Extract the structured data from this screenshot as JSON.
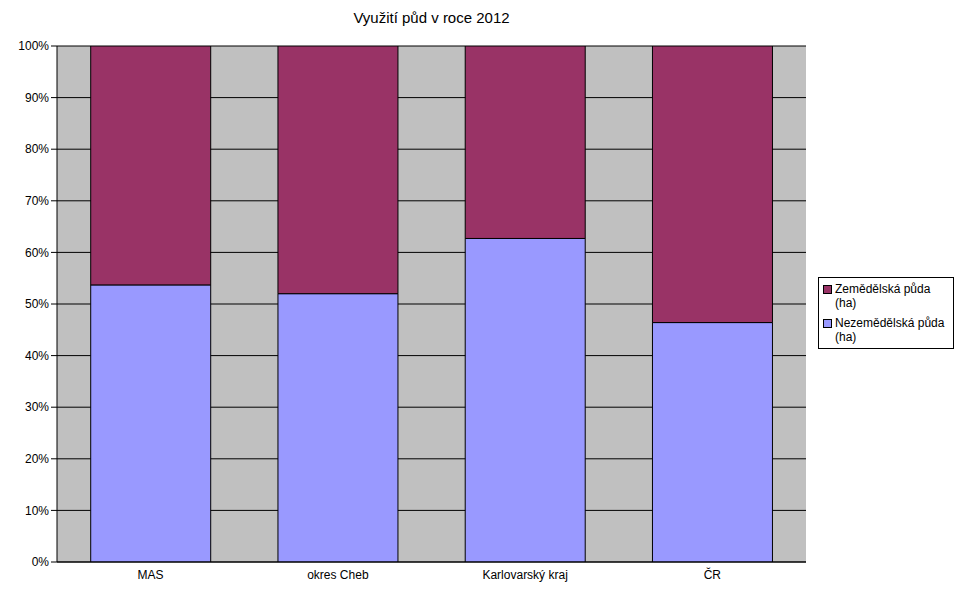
{
  "chart_data": {
    "type": "bar",
    "title": "Využití půd v roce 2012",
    "categories": [
      "MAS",
      "okres Cheb",
      "Karlovarský kraj",
      "ČR"
    ],
    "series": [
      {
        "name": "Nezemědělská půda (ha)",
        "color": "#9999ff",
        "values": [
          53.7,
          52.0,
          62.7,
          46.4
        ]
      },
      {
        "name": "Zemědělská půda (ha)",
        "color": "#993366",
        "values": [
          46.3,
          48.0,
          37.3,
          53.6
        ]
      }
    ],
    "stacked": true,
    "ylim": [
      0,
      100
    ],
    "yticks": [
      {
        "value": 0,
        "label": "0%"
      },
      {
        "value": 10,
        "label": "10%"
      },
      {
        "value": 20,
        "label": "20%"
      },
      {
        "value": 30,
        "label": "30%"
      },
      {
        "value": 40,
        "label": "40%"
      },
      {
        "value": 50,
        "label": "50%"
      },
      {
        "value": 60,
        "label": "60%"
      },
      {
        "value": 70,
        "label": "70%"
      },
      {
        "value": 80,
        "label": "80%"
      },
      {
        "value": 90,
        "label": "90%"
      },
      {
        "value": 100,
        "label": "100%"
      }
    ],
    "grid": true,
    "legend": "right"
  }
}
